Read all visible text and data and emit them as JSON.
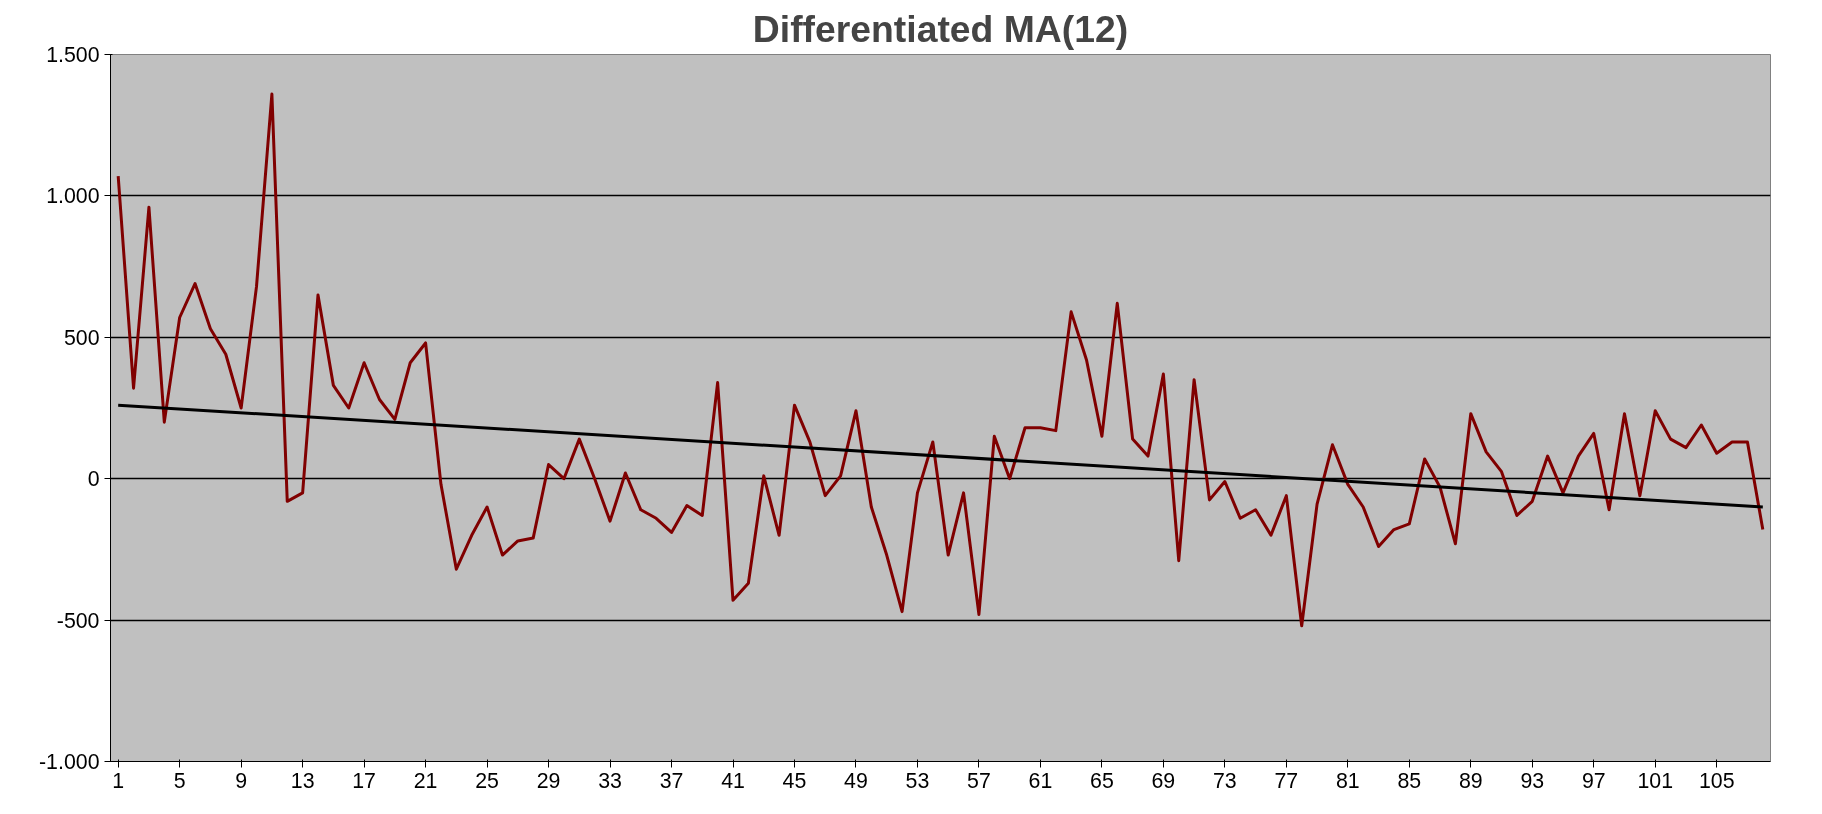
{
  "chart_data": {
    "type": "line",
    "title": "Differentiated MA(12)",
    "x": [
      1,
      2,
      3,
      4,
      5,
      6,
      7,
      8,
      9,
      10,
      11,
      12,
      13,
      14,
      15,
      16,
      17,
      18,
      19,
      20,
      21,
      22,
      23,
      24,
      25,
      26,
      27,
      28,
      29,
      30,
      31,
      32,
      33,
      34,
      35,
      36,
      37,
      38,
      39,
      40,
      41,
      42,
      43,
      44,
      45,
      46,
      47,
      48,
      49,
      50,
      51,
      52,
      53,
      54,
      55,
      56,
      57,
      58,
      59,
      60,
      61,
      62,
      63,
      64,
      65,
      66,
      67,
      68,
      69,
      70,
      71,
      72,
      73,
      74,
      75,
      76,
      77,
      78,
      79,
      80,
      81,
      82,
      83,
      84,
      85,
      86,
      87,
      88,
      89,
      90,
      91,
      92,
      93,
      94,
      95,
      96,
      97,
      98,
      99,
      100,
      101,
      102,
      103,
      104,
      105,
      106,
      107,
      108
    ],
    "series": [
      {
        "color": "#800000",
        "values": [
          1070,
          320,
          960,
          200,
          570,
          690,
          530,
          440,
          250,
          680,
          1360,
          -80,
          -50,
          650,
          330,
          250,
          410,
          280,
          210,
          410,
          480,
          -20,
          -320,
          -200,
          -100,
          -270,
          -220,
          -210,
          50,
          0,
          140,
          0,
          -150,
          20,
          -110,
          -140,
          -190,
          -95,
          -130,
          340,
          -430,
          -370,
          10,
          -200,
          260,
          130,
          -60,
          10,
          240,
          -100,
          -270,
          -470,
          -50,
          130,
          -270,
          -50,
          -480,
          150,
          0,
          180,
          180,
          170,
          590,
          420,
          150,
          620,
          140,
          80,
          370,
          -290,
          350,
          -75,
          -10,
          -140,
          -110,
          -200,
          -60,
          -520,
          -90,
          120,
          -20,
          -100,
          -240,
          -180,
          -160,
          70,
          -30,
          -230,
          230,
          95,
          25,
          -130,
          -80,
          80,
          -50,
          80,
          160,
          -110,
          230,
          -60,
          240,
          140,
          110,
          190,
          90,
          130,
          130,
          -180
        ]
      },
      {
        "color": "#000000",
        "type": "line",
        "x": [
          1,
          108
        ],
        "values": [
          260,
          -100
        ]
      }
    ],
    "xlim": [
      0.5,
      108.5
    ],
    "xticks": [
      1,
      5,
      9,
      13,
      17,
      21,
      25,
      29,
      33,
      37,
      41,
      45,
      49,
      53,
      57,
      61,
      65,
      69,
      73,
      77,
      81,
      85,
      89,
      93,
      97,
      101,
      105
    ],
    "ylim": [
      -1000,
      1500
    ],
    "yticks": [
      {
        "value": -1000,
        "label": "-1.000"
      },
      {
        "value": -500,
        "label": "-500"
      },
      0,
      500,
      {
        "value": 1000,
        "label": "1.000"
      },
      {
        "value": 1500,
        "label": "1.500"
      }
    ],
    "grid": "y",
    "marker": "none",
    "line_style": "solid"
  }
}
